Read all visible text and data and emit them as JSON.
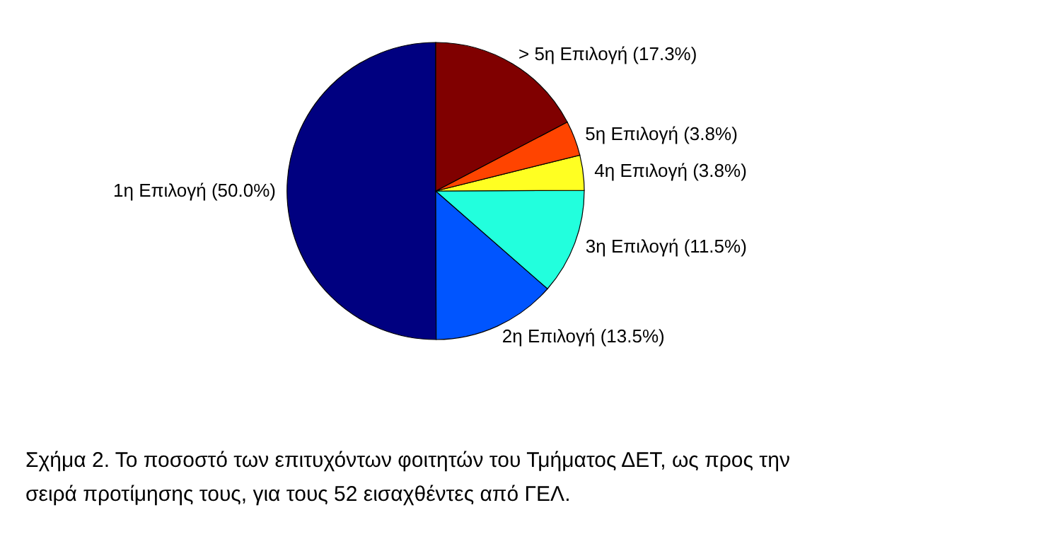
{
  "chart_data": {
    "type": "pie",
    "categories": [
      "1η Επιλογή",
      "2η Επιλογή",
      "3η Επιλογή",
      "4η Επιλογή",
      "5η Επιλογή",
      "> 5η Επιλογή"
    ],
    "values": [
      50.0,
      13.5,
      11.5,
      3.8,
      3.8,
      17.3
    ],
    "value_labels": [
      "(50.0%)",
      "(13.5%)",
      "(11.5%)",
      "(3.8%)",
      "(3.8%)",
      "(17.3%)"
    ],
    "colors": [
      "#000080",
      "#0055ff",
      "#22ffdd",
      "#ffff22",
      "#ff4400",
      "#800000"
    ],
    "annotations": [
      "Σχήμα 2. Το ποσοστό των επιτυχόντων φοιτητών του Τμήματος ΔΕΤ, ως προς την σειρά προτίμησης τους, για τους 52 εισαχθέντες από ΓΕΛ."
    ]
  }
}
